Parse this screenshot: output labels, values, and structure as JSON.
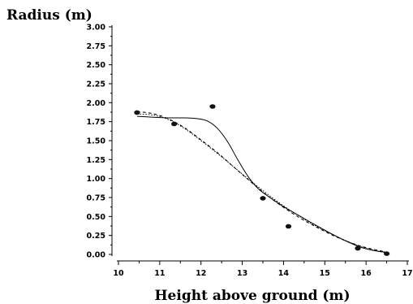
{
  "chart_data": {
    "type": "scatter",
    "title": "",
    "xlabel": "Height above ground (m)",
    "ylabel": "Radius (m)",
    "xlim": [
      10,
      17
    ],
    "ylim": [
      0,
      3
    ],
    "x_ticks": [
      "10",
      "11",
      "12",
      "13",
      "14",
      "15",
      "16",
      "17"
    ],
    "y_ticks": [
      "0.00",
      "0.25",
      "0.50",
      "0.75",
      "1.00",
      "1.25",
      "1.50",
      "1.75",
      "2.00",
      "2.25",
      "2.50",
      "2.75",
      "3.00"
    ],
    "grid": false,
    "points": [
      {
        "x": 10.45,
        "y": 1.87
      },
      {
        "x": 11.35,
        "y": 1.72
      },
      {
        "x": 12.28,
        "y": 1.95
      },
      {
        "x": 13.5,
        "y": 0.74
      },
      {
        "x": 14.12,
        "y": 0.37
      },
      {
        "x": 15.8,
        "y": 0.08
      },
      {
        "x": 16.5,
        "y": 0.01
      }
    ],
    "curves": [
      {
        "style": "solid",
        "x": [
          10.45,
          10.8,
          11.2,
          11.6,
          11.9,
          12.15,
          12.4,
          12.65,
          12.9,
          13.15,
          13.4,
          13.7,
          14.0,
          14.35,
          14.7,
          15.1,
          15.5,
          15.9,
          16.3,
          16.5
        ],
        "y": [
          1.82,
          1.81,
          1.8,
          1.8,
          1.79,
          1.76,
          1.66,
          1.48,
          1.24,
          1.02,
          0.86,
          0.74,
          0.63,
          0.52,
          0.41,
          0.29,
          0.18,
          0.09,
          0.04,
          0.03
        ]
      },
      {
        "style": "dotted",
        "x": [
          10.45,
          10.8,
          11.2,
          11.6,
          12.0,
          12.4,
          12.8,
          13.2,
          13.6,
          14.0,
          14.4,
          14.8,
          15.2,
          15.6,
          16.0,
          16.5
        ],
        "y": [
          1.85,
          1.84,
          1.78,
          1.66,
          1.5,
          1.33,
          1.15,
          0.97,
          0.8,
          0.64,
          0.5,
          0.37,
          0.26,
          0.16,
          0.08,
          0.02
        ]
      },
      {
        "style": "dashed",
        "x": [
          10.45,
          10.8,
          11.2,
          11.6,
          12.0,
          12.4,
          12.8,
          13.2,
          13.6,
          14.0,
          14.4,
          14.8,
          15.2,
          15.6,
          16.0,
          16.5
        ],
        "y": [
          1.88,
          1.86,
          1.79,
          1.67,
          1.51,
          1.34,
          1.15,
          0.96,
          0.78,
          0.62,
          0.48,
          0.36,
          0.25,
          0.16,
          0.09,
          0.03
        ]
      }
    ]
  }
}
